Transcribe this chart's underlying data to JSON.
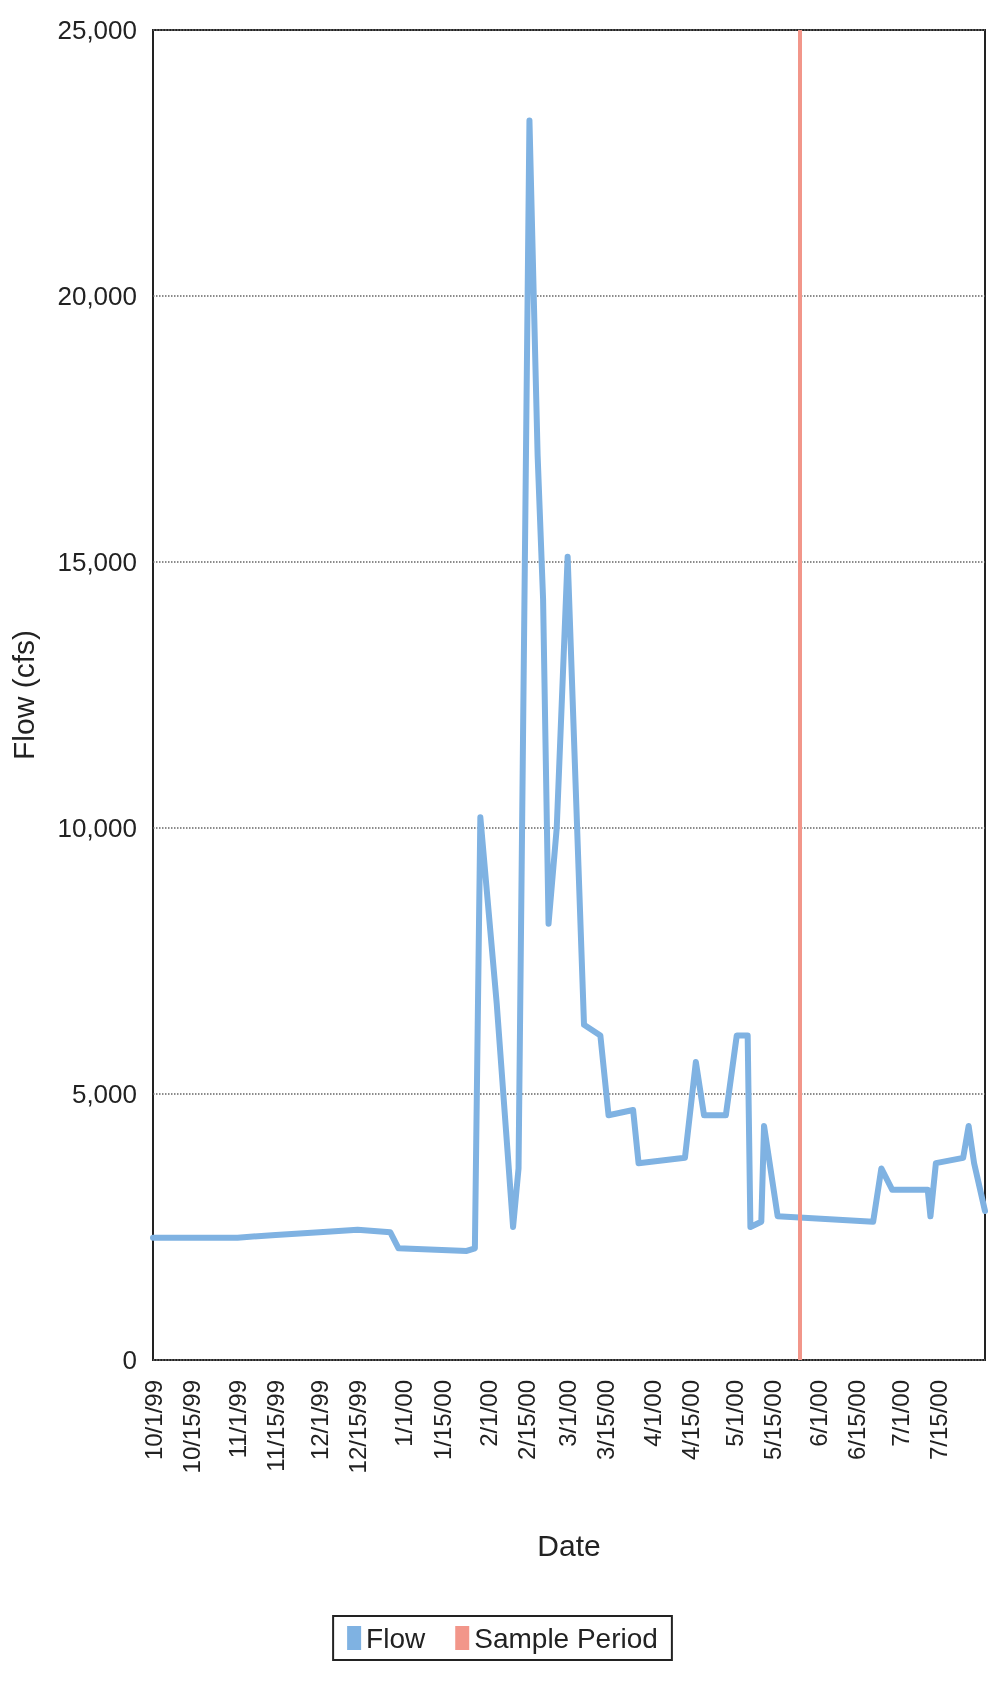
{
  "chart_data": {
    "type": "line",
    "xlabel": "Date",
    "ylabel": "Flow (cfs)",
    "x": [
      "1999-10-01",
      "1999-11-01",
      "1999-11-15",
      "1999-12-01",
      "1999-12-15",
      "1999-12-27",
      "1999-12-30",
      "2000-01-24",
      "2000-01-27",
      "2000-01-29",
      "2000-02-04",
      "2000-02-10",
      "2000-02-12",
      "2000-02-16",
      "2000-02-19",
      "2000-02-21",
      "2000-02-23",
      "2000-02-26",
      "2000-03-01",
      "2000-03-07",
      "2000-03-13",
      "2000-03-16",
      "2000-03-25",
      "2000-03-27",
      "2000-04-13",
      "2000-04-17",
      "2000-04-20",
      "2000-04-28",
      "2000-05-02",
      "2000-05-06",
      "2000-05-07",
      "2000-05-11",
      "2000-05-12",
      "2000-05-17",
      "2000-06-21",
      "2000-06-24",
      "2000-06-28",
      "2000-07-11",
      "2000-07-12",
      "2000-07-14",
      "2000-07-24",
      "2000-07-26",
      "2000-07-28",
      "2000-08-01"
    ],
    "series": [
      {
        "name": "Flow",
        "color": "#7fb2e2",
        "values": [
          2300,
          2300,
          2350,
          2400,
          2450,
          2400,
          2100,
          2050,
          2100,
          10200,
          6700,
          2500,
          3600,
          23300,
          17000,
          14300,
          8200,
          10000,
          15100,
          6300,
          6100,
          4600,
          4700,
          3700,
          3800,
          5600,
          4600,
          4600,
          6100,
          6100,
          2500,
          2600,
          4400,
          2700,
          2600,
          3600,
          3200,
          3200,
          2700,
          3700,
          3800,
          4400,
          3700,
          2800
        ]
      }
    ],
    "ref_lines": [
      {
        "axis": "x",
        "value": "2000-05-25",
        "label": "Sample Period",
        "color": "#f2968a"
      }
    ],
    "xlim": [
      "1999-10-01",
      "2000-08-01"
    ],
    "xticks": [
      {
        "value": "1999-10-01",
        "label": "10/1/99"
      },
      {
        "value": "1999-10-15",
        "label": "10/15/99"
      },
      {
        "value": "1999-11-01",
        "label": "11/1/99"
      },
      {
        "value": "1999-11-15",
        "label": "11/15/99"
      },
      {
        "value": "1999-12-01",
        "label": "12/1/99"
      },
      {
        "value": "1999-12-15",
        "label": "12/15/99"
      },
      {
        "value": "2000-01-01",
        "label": "1/1/00"
      },
      {
        "value": "2000-01-15",
        "label": "1/15/00"
      },
      {
        "value": "2000-02-01",
        "label": "2/1/00"
      },
      {
        "value": "2000-02-15",
        "label": "2/15/00"
      },
      {
        "value": "2000-03-01",
        "label": "3/1/00"
      },
      {
        "value": "2000-03-15",
        "label": "3/15/00"
      },
      {
        "value": "2000-04-01",
        "label": "4/1/00"
      },
      {
        "value": "2000-04-15",
        "label": "4/15/00"
      },
      {
        "value": "2000-05-01",
        "label": "5/1/00"
      },
      {
        "value": "2000-05-15",
        "label": "5/15/00"
      },
      {
        "value": "2000-06-01",
        "label": "6/1/00"
      },
      {
        "value": "2000-06-15",
        "label": "6/15/00"
      },
      {
        "value": "2000-07-01",
        "label": "7/1/00"
      },
      {
        "value": "2000-07-15",
        "label": "7/15/00"
      }
    ],
    "ylim": [
      0,
      25000
    ],
    "yticks": [
      0,
      {
        "value": 5000,
        "label": "5,000"
      },
      {
        "value": 10000,
        "label": "10,000"
      },
      {
        "value": 15000,
        "label": "15,000"
      },
      {
        "value": 20000,
        "label": "20,000"
      },
      {
        "value": 25000,
        "label": "25,000"
      }
    ],
    "grid": "y",
    "legend": "bottom",
    "marker": "none",
    "line_style": "solid"
  }
}
